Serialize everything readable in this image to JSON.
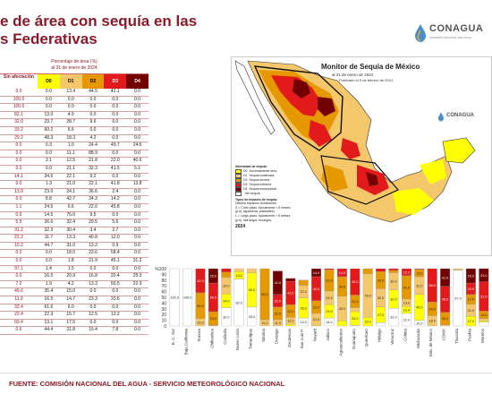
{
  "slide": {
    "title_line1": "e de área con sequía en las",
    "title_line2": "s Federativas",
    "footer": "FUENTE: COMISIÓN NACIONAL DEL AGUA - SERVICIO METEOROLÓGICO NACIONAL"
  },
  "logo": {
    "name": "CONAGUA",
    "sub": "COMISIÓN NACIONAL DEL AGUA"
  },
  "table": {
    "caption1": "Porcentaje de área (%)",
    "caption2": "al 31 de enero de 2024",
    "headers": [
      "Sin afectación",
      "D0",
      "D1",
      "D2",
      "D3",
      "D4"
    ],
    "header_colors": [
      "#ffffff",
      "#ffff00",
      "#f5c76b",
      "#e69800",
      "#e31a1c",
      "#730000"
    ],
    "rows": [
      [
        "0.0",
        "0.0",
        "13.4",
        "44.5",
        "42.1",
        "0.0"
      ],
      [
        "100.0",
        "0.0",
        "0.0",
        "0.0",
        "0.0",
        "0.0"
      ],
      [
        "100.0",
        "0.0",
        "0.0",
        "0.0",
        "0.0",
        "0.0"
      ],
      [
        "82.1",
        "13.0",
        "4.9",
        "0.0",
        "0.0",
        "0.0"
      ],
      [
        "32.0",
        "23.7",
        "28.7",
        "9.6",
        "6.0",
        "0.0"
      ],
      [
        "33.2",
        "60.2",
        "6.6",
        "0.0",
        "0.0",
        "0.0"
      ],
      [
        "29.2",
        "48.3",
        "18.3",
        "4.2",
        "0.0",
        "0.0"
      ],
      [
        "0.0",
        "0.3",
        "1.0",
        "24.4",
        "49.7",
        "24.6"
      ],
      [
        "0.0",
        "0.0",
        "11.1",
        "88.9",
        "0.0",
        "0.0"
      ],
      [
        "0.0",
        "3.1",
        "12.5",
        "21.8",
        "22.0",
        "40.6"
      ],
      [
        "0.0",
        "0.0",
        "21.1",
        "32.3",
        "41.5",
        "5.1"
      ],
      [
        "14.1",
        "34.6",
        "22.1",
        "9.2",
        "0.0",
        "0.0"
      ],
      [
        "0.0",
        "1.3",
        "21.0",
        "22.1",
        "41.8",
        "13.8"
      ],
      [
        "13.9",
        "23.0",
        "24.1",
        "36.6",
        "2.4",
        "0.0"
      ],
      [
        "0.0",
        "8.8",
        "42.7",
        "34.3",
        "14.2",
        "0.0"
      ],
      [
        "1.1",
        "24.5",
        "6.6",
        "22.0",
        "45.8",
        "0.0"
      ],
      [
        "0.0",
        "14.5",
        "76.0",
        "9.5",
        "0.0",
        "0.0"
      ],
      [
        "5.9",
        "26.6",
        "32.4",
        "29.5",
        "5.6",
        "0.0"
      ],
      [
        "31.2",
        "32.3",
        "30.4",
        "3.4",
        "2.7",
        "0.0"
      ],
      [
        "22.2",
        "11.7",
        "13.3",
        "40.8",
        "12.0",
        "0.0"
      ],
      [
        "10.2",
        "44.7",
        "31.0",
        "13.2",
        "0.9",
        "0.0"
      ],
      [
        "0.0",
        "0.0",
        "18.0",
        "23.6",
        "58.4",
        "0.0"
      ],
      [
        "0.0",
        "0.0",
        "1.8",
        "21.9",
        "45.1",
        "31.2"
      ],
      [
        "97.1",
        "1.4",
        "1.5",
        "0.0",
        "0.0",
        "0.0"
      ],
      [
        "0.0",
        "16.5",
        "20.9",
        "16.8",
        "20.4",
        "25.3"
      ],
      [
        "7.2",
        "1.9",
        "4.2",
        "13.3",
        "50.5",
        "22.9"
      ],
      [
        "49.6",
        "35.4",
        "15.0",
        "0.0",
        "0.0",
        "0.0"
      ],
      [
        "11.9",
        "16.5",
        "14.7",
        "23.3",
        "33.6",
        "0.0"
      ],
      [
        "32.4",
        "61.6",
        "6.0",
        "0.0",
        "0.0",
        "0.0"
      ],
      [
        "22.4",
        "22.3",
        "15.7",
        "12.5",
        "13.2",
        "0.0"
      ],
      [
        "69.4",
        "13.1",
        "17.5",
        "0.0",
        "0.0",
        "0.0"
      ],
      [
        "0.6",
        "44.4",
        "31.8",
        "15.4",
        "7.8",
        "0.0"
      ]
    ]
  },
  "map": {
    "title": "Monitor de Sequía de México",
    "subtitle": "al 31 de enero de 2024",
    "published": "Publicado el 5 de febrero de 2024",
    "legend_heading": "Intensidad de sequía:",
    "legend": [
      {
        "code": "D0",
        "label": "Anormalmente seco",
        "color": "#ffff00"
      },
      {
        "code": "D1",
        "label": "Sequía moderada",
        "color": "#f5c76b"
      },
      {
        "code": "D2",
        "label": "Sequía severa",
        "color": "#e69800"
      },
      {
        "code": "D3",
        "label": "Sequía extrema",
        "color": "#e31a1c"
      },
      {
        "code": "D4",
        "label": "Sequía excepcional",
        "color": "#730000"
      },
      {
        "code": "",
        "label": "Sin sequía",
        "color": "#ffffff"
      }
    ],
    "impact_heading": "Tipos de impacto de sequía:",
    "impact_note1": "Delinea impactos dominantes",
    "impact_note2": "S = Corto plazo, típicamente < 6 meses",
    "impact_note3": "(p.ej. agricultura, pastizales)",
    "impact_note4": "L = Largo plazo, típicamente > 6 meses",
    "impact_note5": "(p.ej. hidrología, ecología)",
    "year_label": "2024"
  },
  "chart_data": {
    "type": "bar",
    "stacked": true,
    "y_tick_labels": [
      "%100",
      "90",
      "80",
      "70",
      "60",
      "50",
      "40",
      "30",
      "20",
      "10",
      "0"
    ],
    "ylim": [
      0,
      100
    ],
    "categories": [
      "B. C. Sur",
      "Baja California",
      "Sonora",
      "Chihuahua",
      "Coahuila",
      "Nuevo León",
      "Tamaulipas",
      "Sinaloa",
      "Durango",
      "Zacatecas",
      "San Luis P.",
      "Nayarit",
      "Jalisco",
      "Aguascalientes",
      "Guanajuato",
      "Querétaro",
      "Hidalgo",
      "Veracruz",
      "Colima",
      "Michoacán",
      "Edo. de México",
      "CDMX",
      "Tlaxcala",
      "Puebla",
      "Morelos"
    ],
    "series": [
      {
        "name": "Sin afectación",
        "color": "#ffffff",
        "values": [
          100,
          100,
          0,
          0,
          32,
          82,
          33,
          0,
          0,
          0,
          14,
          0,
          14,
          0,
          1,
          0,
          6,
          31,
          22,
          10,
          0,
          0,
          97,
          0,
          7
        ]
      },
      {
        "name": "D0",
        "color": "#ffff00",
        "values": [
          0,
          0,
          0,
          0,
          24,
          13,
          60,
          0,
          0,
          3,
          35,
          1,
          23,
          9,
          24,
          15,
          27,
          32,
          12,
          45,
          0,
          0,
          1,
          17,
          2
        ]
      },
      {
        "name": "D1",
        "color": "#f5c76b",
        "values": [
          0,
          0,
          13,
          1,
          29,
          5,
          7,
          11,
          11,
          12,
          22,
          21,
          24,
          43,
          7,
          76,
          32,
          30,
          13,
          31,
          18,
          2,
          2,
          21,
          4
        ]
      },
      {
        "name": "D2",
        "color": "#e69800",
        "values": [
          0,
          0,
          45,
          24,
          9,
          0,
          0,
          89,
          22,
          22,
          9,
          22,
          37,
          34,
          22,
          9,
          30,
          4,
          41,
          13,
          24,
          22,
          0,
          17,
          13
        ]
      },
      {
        "name": "D3",
        "color": "#e31a1c",
        "values": [
          0,
          0,
          42,
          50,
          6,
          0,
          0,
          0,
          22,
          41,
          0,
          42,
          2,
          14,
          46,
          0,
          5,
          3,
          12,
          1,
          58,
          45,
          0,
          20,
          51
        ]
      },
      {
        "name": "D4",
        "color": "#730000",
        "values": [
          0,
          0,
          0,
          25,
          0,
          0,
          0,
          0,
          41,
          5,
          0,
          14,
          0,
          0,
          0,
          0,
          0,
          0,
          0,
          0,
          0,
          31,
          0,
          25,
          23
        ]
      }
    ]
  }
}
